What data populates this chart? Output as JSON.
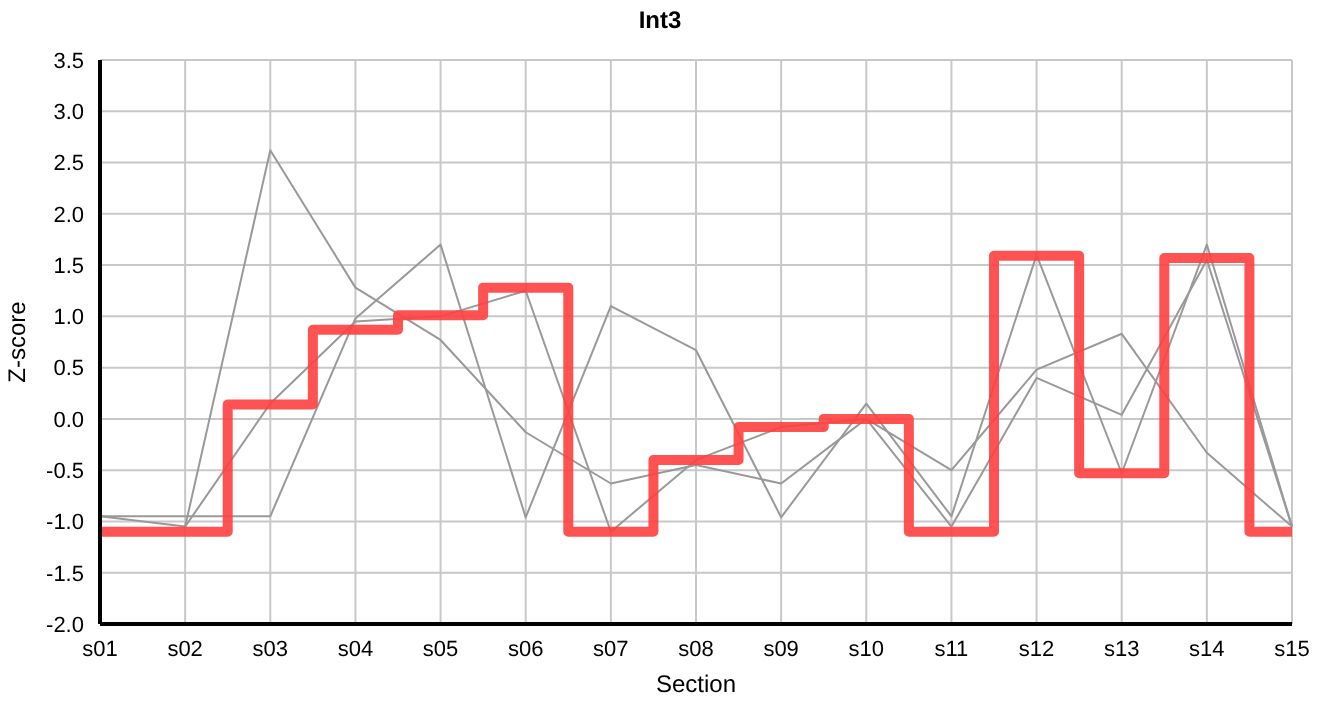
{
  "chart_data": {
    "type": "line",
    "title": "Int3",
    "xlabel": "Section",
    "ylabel": "Z-score",
    "categories": [
      "s01",
      "s02",
      "s03",
      "s04",
      "s05",
      "s06",
      "s07",
      "s08",
      "s09",
      "s10",
      "s11",
      "s12",
      "s13",
      "s14",
      "s15"
    ],
    "series": [
      {
        "color": "#999999",
        "values": [
          -0.95,
          -1.05,
          2.62,
          1.28,
          0.77,
          -0.13,
          -0.63,
          -0.45,
          -0.63,
          0.0,
          -0.5,
          0.48,
          0.83,
          -0.33,
          -1.05
        ]
      },
      {
        "color": "#999999",
        "values": [
          -0.95,
          -0.95,
          -0.95,
          0.98,
          1.7,
          -0.96,
          1.1,
          0.67,
          -0.96,
          0.15,
          -0.95,
          1.6,
          -0.53,
          1.7,
          -1.05
        ]
      },
      {
        "color": "#999999",
        "values": [
          null,
          -1.05,
          0.15,
          0.95,
          1.0,
          1.25,
          -1.1,
          -0.4,
          -0.08,
          0.0,
          -1.05,
          0.4,
          0.04,
          1.55,
          -1.05
        ]
      },
      {
        "type": "step",
        "color": "#ff4040",
        "values": [
          -1.1,
          -1.1,
          0.14,
          0.87,
          1.01,
          1.28,
          -1.1,
          -0.4,
          -0.08,
          0.0,
          -1.1,
          1.59,
          -0.53,
          1.57,
          -1.1
        ]
      }
    ],
    "ylim": [
      -2.0,
      3.5
    ],
    "yticks": [
      {
        "value": -2,
        "label": "-2.0"
      },
      -1.5,
      {
        "value": -1,
        "label": "-1.0"
      },
      -0.5,
      {
        "value": 0,
        "label": "0.0"
      },
      0.5,
      {
        "value": 1,
        "label": "1.0"
      },
      1.5,
      {
        "value": 2,
        "label": "2.0"
      },
      2.5,
      {
        "value": 3,
        "label": "3.0"
      },
      3.5
    ],
    "grid": true,
    "marker": "none"
  }
}
